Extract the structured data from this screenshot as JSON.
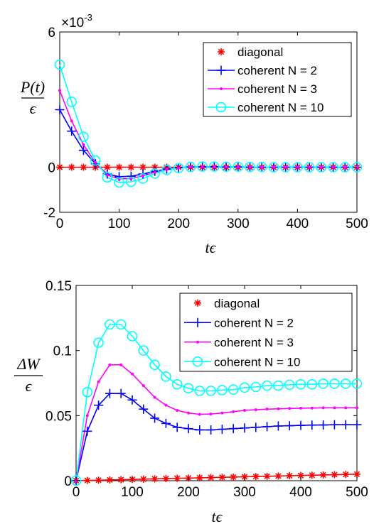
{
  "chart_data": [
    {
      "type": "line",
      "ylabel_num": "P(t)",
      "ylabel_den": "ϵ",
      "xlabel": "tϵ",
      "exponent_label": "×10",
      "exponent_power": "-3",
      "xlim": [
        0,
        500
      ],
      "ylim": [
        -2,
        6
      ],
      "xticks": [
        "0",
        "100",
        "200",
        "300",
        "400",
        "500"
      ],
      "yticks": [
        "-2",
        "0",
        "6"
      ],
      "ytick_values": [
        -2,
        0,
        6
      ],
      "legend_position": "top-right",
      "x": [
        0,
        20,
        40,
        60,
        80,
        100,
        120,
        140,
        160,
        180,
        200,
        220,
        240,
        260,
        280,
        300,
        320,
        340,
        360,
        380,
        400,
        420,
        440,
        460,
        480,
        500
      ],
      "series": [
        {
          "name": "diagonal",
          "color": "#ff0000",
          "marker": "asterisk",
          "values": [
            0,
            0,
            0,
            0,
            0,
            0,
            0,
            0,
            0,
            0,
            0,
            0,
            0,
            0,
            0,
            0,
            0,
            0,
            0,
            0,
            0,
            0,
            0,
            0,
            0,
            0
          ]
        },
        {
          "name": "coherent N = 2",
          "color": "#0000ff",
          "marker": "plus",
          "values": [
            2.55,
            1.6,
            0.75,
            0.15,
            -0.3,
            -0.42,
            -0.4,
            -0.3,
            -0.18,
            -0.08,
            -0.02,
            0.01,
            0.02,
            0.02,
            0.01,
            0.01,
            0,
            0,
            0,
            0,
            0,
            0,
            0,
            0,
            0,
            0
          ]
        },
        {
          "name": "coherent N = 3",
          "color": "#ff00ff",
          "marker": "dot",
          "values": [
            3.4,
            2.05,
            1.0,
            0.2,
            -0.35,
            -0.52,
            -0.5,
            -0.38,
            -0.22,
            -0.1,
            -0.03,
            0.01,
            0.02,
            0.02,
            0.02,
            0.01,
            0.01,
            0,
            0,
            0,
            0,
            0,
            0,
            0,
            0,
            0
          ]
        },
        {
          "name": "coherent N = 10",
          "color": "#00ffff",
          "marker": "circle",
          "values": [
            4.55,
            2.9,
            1.35,
            0.3,
            -0.45,
            -0.68,
            -0.65,
            -0.5,
            -0.28,
            -0.12,
            -0.04,
            0.01,
            0.03,
            0.03,
            0.02,
            0.02,
            0.01,
            0.01,
            0,
            0,
            0,
            0,
            0,
            0,
            0,
            0
          ]
        }
      ]
    },
    {
      "type": "line",
      "ylabel_num": "ΔW",
      "ylabel_den": "ϵ",
      "xlabel": "tϵ",
      "xlim": [
        0,
        500
      ],
      "ylim": [
        0,
        0.15
      ],
      "xticks": [
        "0",
        "100",
        "200",
        "300",
        "400",
        "500"
      ],
      "yticks": [
        "0",
        "0.05",
        "0.1",
        "0.15"
      ],
      "ytick_values": [
        0,
        0.05,
        0.1,
        0.15
      ],
      "legend_position": "top-right",
      "x": [
        0,
        20,
        40,
        60,
        80,
        100,
        120,
        140,
        160,
        180,
        200,
        220,
        240,
        260,
        280,
        300,
        320,
        340,
        360,
        380,
        400,
        420,
        440,
        460,
        480,
        500
      ],
      "series": [
        {
          "name": "diagonal",
          "color": "#ff0000",
          "marker": "asterisk",
          "values": [
            0,
            0.0002,
            0.0004,
            0.0006,
            0.0008,
            0.001,
            0.0012,
            0.0014,
            0.0016,
            0.0018,
            0.002,
            0.0022,
            0.0024,
            0.0026,
            0.0028,
            0.003,
            0.0032,
            0.0034,
            0.0036,
            0.0038,
            0.004,
            0.0042,
            0.0044,
            0.0046,
            0.0048,
            0.005
          ]
        },
        {
          "name": "coherent N = 2",
          "color": "#0000ff",
          "marker": "plus",
          "values": [
            0,
            0.038,
            0.058,
            0.067,
            0.067,
            0.062,
            0.055,
            0.048,
            0.044,
            0.041,
            0.04,
            0.039,
            0.039,
            0.0395,
            0.04,
            0.0405,
            0.041,
            0.0415,
            0.042,
            0.0422,
            0.0425,
            0.0427,
            0.0428,
            0.043,
            0.043,
            0.043
          ]
        },
        {
          "name": "coherent N = 3",
          "color": "#ff00ff",
          "marker": "dot",
          "values": [
            0,
            0.05,
            0.076,
            0.089,
            0.089,
            0.082,
            0.073,
            0.064,
            0.058,
            0.054,
            0.052,
            0.051,
            0.0512,
            0.052,
            0.053,
            0.054,
            0.0545,
            0.055,
            0.0552,
            0.0555,
            0.0557,
            0.0558,
            0.056,
            0.056,
            0.056,
            0.056
          ]
        },
        {
          "name": "coherent N = 10",
          "color": "#00ffff",
          "marker": "circle",
          "values": [
            0,
            0.068,
            0.106,
            0.12,
            0.12,
            0.111,
            0.1,
            0.089,
            0.08,
            0.074,
            0.071,
            0.069,
            0.069,
            0.0695,
            0.07,
            0.0715,
            0.072,
            0.073,
            0.073,
            0.0737,
            0.074,
            0.074,
            0.0745,
            0.0745,
            0.0745,
            0.0745
          ]
        }
      ]
    }
  ]
}
